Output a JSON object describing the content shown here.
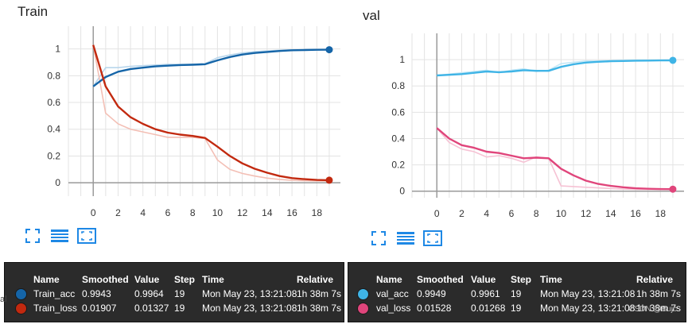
{
  "chart_data": [
    {
      "id": "train",
      "type": "line",
      "title": "Train",
      "x_ticks": [
        0,
        2,
        4,
        6,
        8,
        10,
        12,
        14,
        16,
        18
      ],
      "y_ticks": [
        0,
        0.2,
        0.4,
        0.6,
        0.8,
        1
      ],
      "xlim": [
        -2,
        19.9
      ],
      "ylim": [
        -0.1,
        1.17
      ],
      "series": [
        {
          "name": "Train_acc",
          "color": "#1565a8",
          "raw_color": "#b9d6ec",
          "smoothed": [
            [
              0,
              0.72
            ],
            [
              1,
              0.79
            ],
            [
              2,
              0.83
            ],
            [
              3,
              0.85
            ],
            [
              4,
              0.86
            ],
            [
              5,
              0.87
            ],
            [
              6,
              0.875
            ],
            [
              7,
              0.88
            ],
            [
              8,
              0.882
            ],
            [
              9,
              0.886
            ],
            [
              10,
              0.915
            ],
            [
              11,
              0.94
            ],
            [
              12,
              0.958
            ],
            [
              13,
              0.97
            ],
            [
              14,
              0.978
            ],
            [
              15,
              0.985
            ],
            [
              16,
              0.99
            ],
            [
              17,
              0.992
            ],
            [
              18,
              0.994
            ],
            [
              19,
              0.9943
            ]
          ],
          "raw": [
            [
              0,
              0.72
            ],
            [
              1,
              0.86
            ],
            [
              2,
              0.86
            ],
            [
              3,
              0.87
            ],
            [
              4,
              0.875
            ],
            [
              5,
              0.88
            ],
            [
              6,
              0.885
            ],
            [
              7,
              0.885
            ],
            [
              8,
              0.885
            ],
            [
              9,
              0.89
            ],
            [
              10,
              0.935
            ],
            [
              11,
              0.955
            ],
            [
              12,
              0.97
            ],
            [
              13,
              0.98
            ],
            [
              14,
              0.985
            ],
            [
              15,
              0.99
            ],
            [
              16,
              0.993
            ],
            [
              17,
              0.995
            ],
            [
              18,
              0.996
            ],
            [
              19,
              0.9964
            ]
          ]
        },
        {
          "name": "Train_loss",
          "color": "#c2290f",
          "raw_color": "#f3bfb5",
          "smoothed": [
            [
              0,
              1.03
            ],
            [
              1,
              0.72
            ],
            [
              2,
              0.57
            ],
            [
              3,
              0.49
            ],
            [
              4,
              0.44
            ],
            [
              5,
              0.4
            ],
            [
              6,
              0.375
            ],
            [
              7,
              0.36
            ],
            [
              8,
              0.35
            ],
            [
              9,
              0.335
            ],
            [
              10,
              0.27
            ],
            [
              11,
              0.2
            ],
            [
              12,
              0.145
            ],
            [
              13,
              0.105
            ],
            [
              14,
              0.075
            ],
            [
              15,
              0.05
            ],
            [
              16,
              0.035
            ],
            [
              17,
              0.027
            ],
            [
              18,
              0.021
            ],
            [
              19,
              0.01907
            ]
          ],
          "raw": [
            [
              0,
              1.03
            ],
            [
              1,
              0.52
            ],
            [
              2,
              0.44
            ],
            [
              3,
              0.4
            ],
            [
              4,
              0.38
            ],
            [
              5,
              0.36
            ],
            [
              6,
              0.34
            ],
            [
              7,
              0.34
            ],
            [
              8,
              0.34
            ],
            [
              9,
              0.33
            ],
            [
              10,
              0.17
            ],
            [
              11,
              0.1
            ],
            [
              12,
              0.07
            ],
            [
              13,
              0.05
            ],
            [
              14,
              0.035
            ],
            [
              15,
              0.025
            ],
            [
              16,
              0.018
            ],
            [
              17,
              0.015
            ],
            [
              18,
              0.014
            ],
            [
              19,
              0.01327
            ]
          ]
        }
      ],
      "table": {
        "headers": {
          "name": "Name",
          "smoothed": "Smoothed",
          "value": "Value",
          "step": "Step",
          "time": "Time",
          "relative": "Relative"
        },
        "rows": [
          {
            "color": "#1565a8",
            "name": "Train_acc",
            "smoothed": "0.9943",
            "value": "0.9964",
            "step": "19",
            "time": "Mon May 23, 13:21:08",
            "relative": "1h 38m 7s"
          },
          {
            "color": "#c2290f",
            "name": "Train_loss",
            "smoothed": "0.01907",
            "value": "0.01327",
            "step": "19",
            "time": "Mon May 23, 13:21:08",
            "relative": "1h 38m 7s"
          }
        ]
      }
    },
    {
      "id": "val",
      "type": "line",
      "title": "val",
      "x_ticks": [
        0,
        2,
        4,
        6,
        8,
        10,
        12,
        14,
        16,
        18
      ],
      "y_ticks": [
        0,
        0.2,
        0.4,
        0.6,
        0.8,
        1
      ],
      "xlim": [
        -2,
        19.9
      ],
      "ylim": [
        -0.05,
        1.2
      ],
      "series": [
        {
          "name": "val_acc",
          "color": "#3fb4e6",
          "raw_color": "#c3e7f6",
          "smoothed": [
            [
              0,
              0.88
            ],
            [
              1,
              0.885
            ],
            [
              2,
              0.89
            ],
            [
              3,
              0.9
            ],
            [
              4,
              0.91
            ],
            [
              5,
              0.905
            ],
            [
              6,
              0.91
            ],
            [
              7,
              0.92
            ],
            [
              8,
              0.915
            ],
            [
              9,
              0.915
            ],
            [
              10,
              0.945
            ],
            [
              11,
              0.965
            ],
            [
              12,
              0.978
            ],
            [
              13,
              0.984
            ],
            [
              14,
              0.988
            ],
            [
              15,
              0.99
            ],
            [
              16,
              0.992
            ],
            [
              17,
              0.993
            ],
            [
              18,
              0.994
            ],
            [
              19,
              0.9949
            ]
          ],
          "raw": [
            [
              0,
              0.88
            ],
            [
              1,
              0.89
            ],
            [
              2,
              0.9
            ],
            [
              3,
              0.91
            ],
            [
              4,
              0.92
            ],
            [
              5,
              0.9
            ],
            [
              6,
              0.92
            ],
            [
              7,
              0.93
            ],
            [
              8,
              0.91
            ],
            [
              9,
              0.92
            ],
            [
              10,
              0.97
            ],
            [
              11,
              0.98
            ],
            [
              12,
              0.99
            ],
            [
              13,
              0.99
            ],
            [
              14,
              0.993
            ],
            [
              15,
              0.994
            ],
            [
              16,
              0.995
            ],
            [
              17,
              0.995
            ],
            [
              18,
              0.996
            ],
            [
              19,
              0.9961
            ]
          ]
        },
        {
          "name": "val_loss",
          "color": "#e0457b",
          "raw_color": "#f6c2d4",
          "smoothed": [
            [
              0,
              0.48
            ],
            [
              1,
              0.4
            ],
            [
              2,
              0.35
            ],
            [
              3,
              0.33
            ],
            [
              4,
              0.3
            ],
            [
              5,
              0.29
            ],
            [
              6,
              0.27
            ],
            [
              7,
              0.25
            ],
            [
              8,
              0.255
            ],
            [
              9,
              0.25
            ],
            [
              10,
              0.17
            ],
            [
              11,
              0.12
            ],
            [
              12,
              0.08
            ],
            [
              13,
              0.055
            ],
            [
              14,
              0.04
            ],
            [
              15,
              0.03
            ],
            [
              16,
              0.022
            ],
            [
              17,
              0.018
            ],
            [
              18,
              0.016
            ],
            [
              19,
              0.01528
            ]
          ],
          "raw": [
            [
              0,
              0.48
            ],
            [
              1,
              0.37
            ],
            [
              2,
              0.32
            ],
            [
              3,
              0.3
            ],
            [
              4,
              0.26
            ],
            [
              5,
              0.27
            ],
            [
              6,
              0.25
            ],
            [
              7,
              0.22
            ],
            [
              8,
              0.26
            ],
            [
              9,
              0.25
            ],
            [
              10,
              0.04
            ],
            [
              11,
              0.035
            ],
            [
              12,
              0.03
            ],
            [
              13,
              0.025
            ],
            [
              14,
              0.02
            ],
            [
              15,
              0.016
            ],
            [
              16,
              0.014
            ],
            [
              17,
              0.013
            ],
            [
              18,
              0.013
            ],
            [
              19,
              0.01268
            ]
          ]
        }
      ],
      "table": {
        "headers": {
          "name": "Name",
          "smoothed": "Smoothed",
          "value": "Value",
          "step": "Step",
          "time": "Time",
          "relative": "Relative"
        },
        "rows": [
          {
            "color": "#3fb4e6",
            "name": "val_acc",
            "smoothed": "0.9949",
            "value": "0.9961",
            "step": "19",
            "time": "Mon May 23, 13:21:08",
            "relative": "1h 38m 7s"
          },
          {
            "color": "#e0457b",
            "name": "val_loss",
            "smoothed": "0.01528",
            "value": "0.01268",
            "step": "19",
            "time": "Mon May 23, 13:21:08",
            "relative": "1h 38m 7s"
          }
        ]
      }
    }
  ],
  "stray_text": "al",
  "watermark": "CSDN @Bujc",
  "icons": [
    "fullscreen-icon",
    "data-table-icon",
    "fit-domain-icon"
  ],
  "accent_color": "#1e88e5"
}
